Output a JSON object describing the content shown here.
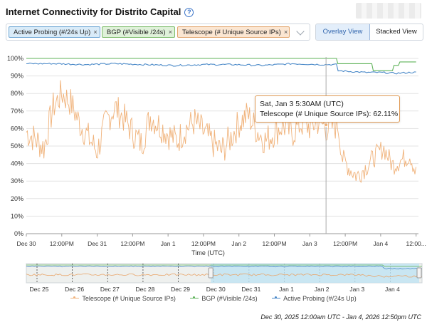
{
  "header": {
    "title": "Internet Connectivity for Distrito Capital",
    "help_icon": "question-circle-icon",
    "accent": "#3b74c8"
  },
  "filters": {
    "chips": [
      {
        "label": "Active Probing (#/24s Up)",
        "color": "#6da6d4"
      },
      {
        "label": "BGP (#Visible /24s)",
        "color": "#7cbc6a"
      },
      {
        "label": "Telescope (# Unique Source IPs)",
        "color": "#e2a66e"
      }
    ],
    "remove_glyph": "×",
    "dropdown_icon": "chevron-down-icon"
  },
  "view_toggle": {
    "overlay_label": "Overlay View",
    "stacked_label": "Stacked View",
    "selected": "Overlay View"
  },
  "chart_data": {
    "type": "line",
    "xlabel": "Time (UTC)",
    "ylabel": "",
    "ylim": [
      0,
      100
    ],
    "y_ticks": [
      "0%",
      "10%",
      "20%",
      "30%",
      "40%",
      "50%",
      "60%",
      "70%",
      "80%",
      "90%",
      "100%"
    ],
    "x_ticks": [
      "Dec 30",
      "12:00PM",
      "Dec 31",
      "12:00PM",
      "Jan 1",
      "12:00PM",
      "Jan 2",
      "12:00PM",
      "Jan 3",
      "12:00PM",
      "Jan 4",
      "12:00..."
    ],
    "x_range_hours": [
      0,
      132.8
    ],
    "grid": true,
    "series": [
      {
        "name": "Telescope (# Unique Source IPs)",
        "color": "#f0b27a",
        "x": [
          0,
          3,
          6,
          9,
          12,
          15,
          18,
          21,
          24,
          27,
          30,
          33,
          36,
          39,
          42,
          45,
          48,
          51,
          54,
          57,
          60,
          63,
          66,
          69,
          72,
          75,
          78,
          81,
          84,
          87,
          90,
          93,
          96,
          99,
          102,
          105,
          105.5,
          107,
          110,
          112,
          115,
          118,
          121,
          124,
          127,
          130,
          132
        ],
        "y": [
          58,
          54,
          49,
          72,
          80,
          75,
          63,
          55,
          47,
          64,
          72,
          66,
          58,
          51,
          67,
          62,
          57,
          53,
          60,
          64,
          58,
          52,
          47,
          54,
          63,
          68,
          59,
          53,
          58,
          62,
          57,
          63,
          61,
          64,
          60,
          62,
          62,
          43,
          36,
          33,
          38,
          44,
          49,
          39,
          42,
          45,
          34
        ]
      },
      {
        "name": "BGP (#Visible /24s)",
        "color": "#5fb35a",
        "x": [
          0,
          105,
          105.5,
          117,
          117.5,
          124,
          124.5,
          126,
          126.5,
          132
        ],
        "y": [
          100,
          100,
          97,
          97,
          93,
          93,
          96,
          96,
          98,
          98
        ]
      },
      {
        "name": "Active Probing (#/24s Up)",
        "color": "#4a89c8",
        "x": [
          0,
          10,
          20,
          30,
          40,
          50,
          60,
          70,
          80,
          90,
          100,
          105,
          105.5,
          110,
          115,
          120,
          125,
          130,
          132
        ],
        "y": [
          97,
          97,
          96.5,
          97,
          96.5,
          96,
          96.5,
          96.5,
          96,
          97,
          96.5,
          96.5,
          93,
          92.5,
          92,
          92,
          91.5,
          92,
          92
        ]
      }
    ],
    "tooltip": {
      "time": "Sat, Jan 3 5:30AM (UTC)",
      "series": "Telescope (# Unique Source IPs)",
      "value": "62.11%",
      "x": 101.5
    },
    "navigator": {
      "ticks": [
        "Dec 25",
        "Dec 26",
        "Dec 27",
        "Dec 28",
        "Dec 29",
        "Dec 30",
        "Dec 31",
        "Jan 1",
        "Jan 2",
        "Jan 3",
        "Jan 4"
      ],
      "selection": [
        "Dec 30",
        "Jan 4"
      ]
    }
  },
  "legend_items": [
    {
      "label": "Telescope (# Unique Source IPs)",
      "color": "#f0b27a"
    },
    {
      "label": "BGP (#Visible /24s)",
      "color": "#5fb35a"
    },
    {
      "label": "Active Probing (#/24s Up)",
      "color": "#4a89c8"
    }
  ],
  "footer": {
    "date_range": "Dec 30, 2025 12:00am UTC - Jan 4, 2026 12:50pm UTC"
  }
}
